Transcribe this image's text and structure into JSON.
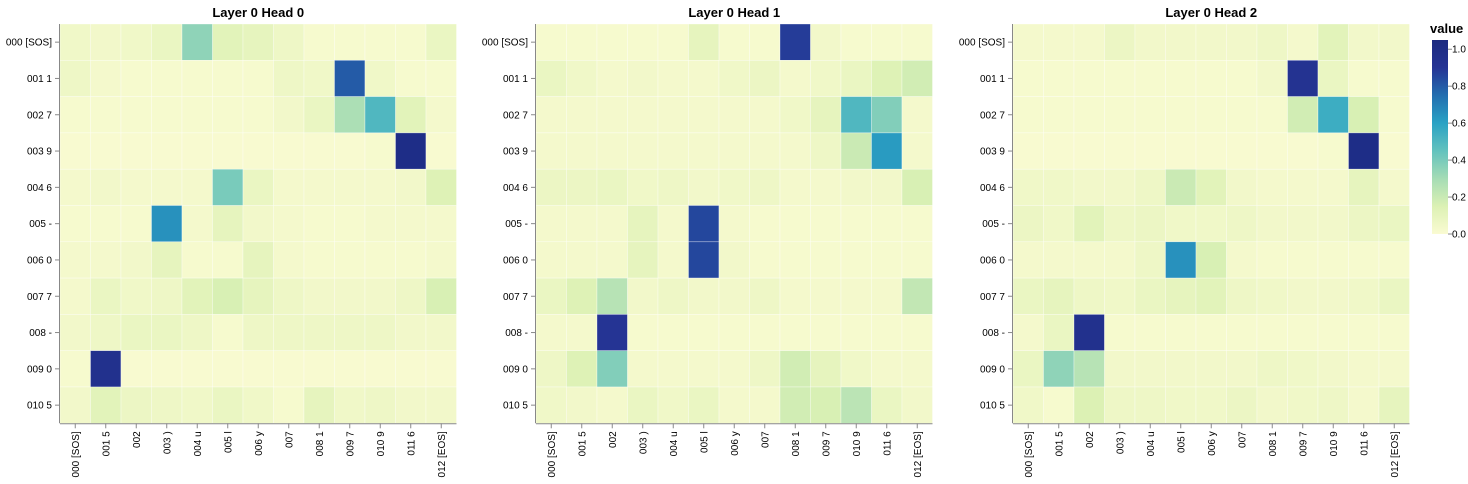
{
  "chart_data": [
    {
      "type": "heatmap",
      "title": "Layer 0 Head 0",
      "x_labels": [
        "000 [SOS]",
        "001 5",
        "002",
        "003 )",
        "004 u",
        "005 l",
        "006 y",
        "007",
        "008 1",
        "009 7",
        "010 9",
        "011 6",
        "012 [EOS]"
      ],
      "y_labels": [
        "000 [SOS]",
        "001 1",
        "002 7",
        "003 9",
        "004 6",
        "005 -",
        "006 0",
        "007 7",
        "008 -",
        "009 0",
        "010 5"
      ],
      "values": [
        [
          0.05,
          0.04,
          0.05,
          0.08,
          0.35,
          0.12,
          0.1,
          0.06,
          0.02,
          0.02,
          0.02,
          0.02,
          0.08
        ],
        [
          0.06,
          0.03,
          0.02,
          0.02,
          0.02,
          0.02,
          0.02,
          0.06,
          0.05,
          0.8,
          0.05,
          0.02,
          0.02
        ],
        [
          0.02,
          0.02,
          0.02,
          0.02,
          0.02,
          0.02,
          0.02,
          0.04,
          0.08,
          0.28,
          0.5,
          0.12,
          0.03
        ],
        [
          0.01,
          0.01,
          0.01,
          0.01,
          0.01,
          0.01,
          0.01,
          0.01,
          0.01,
          0.01,
          0.02,
          1.0,
          0.01
        ],
        [
          0.03,
          0.04,
          0.03,
          0.03,
          0.03,
          0.4,
          0.08,
          0.03,
          0.03,
          0.03,
          0.03,
          0.04,
          0.14
        ],
        [
          0.02,
          0.02,
          0.02,
          0.65,
          0.03,
          0.1,
          0.04,
          0.03,
          0.02,
          0.02,
          0.03,
          0.03,
          0.03
        ],
        [
          0.03,
          0.03,
          0.04,
          0.1,
          0.02,
          0.02,
          0.1,
          0.03,
          0.02,
          0.02,
          0.02,
          0.02,
          0.03
        ],
        [
          0.03,
          0.08,
          0.05,
          0.06,
          0.12,
          0.16,
          0.1,
          0.06,
          0.04,
          0.04,
          0.04,
          0.06,
          0.16
        ],
        [
          0.04,
          0.06,
          0.08,
          0.08,
          0.06,
          0.02,
          0.06,
          0.06,
          0.06,
          0.06,
          0.06,
          0.04,
          0.04
        ],
        [
          0.02,
          0.95,
          0.01,
          0.01,
          0.01,
          0.01,
          0.01,
          0.01,
          0.01,
          0.01,
          0.01,
          0.01,
          0.01
        ],
        [
          0.04,
          0.12,
          0.07,
          0.06,
          0.05,
          0.08,
          0.05,
          0.02,
          0.1,
          0.05,
          0.06,
          0.04,
          0.04
        ]
      ]
    },
    {
      "type": "heatmap",
      "title": "Layer 0 Head 1",
      "x_labels": [
        "000 [SOS]",
        "001 5",
        "002",
        "003 )",
        "004 u",
        "005 l",
        "006 y",
        "007",
        "008 1",
        "009 7",
        "010 9",
        "011 6",
        "012 [EOS]"
      ],
      "y_labels": [
        "000 [SOS]",
        "001 1",
        "002 7",
        "003 9",
        "004 6",
        "005 -",
        "006 0",
        "007 7",
        "008 -",
        "009 0",
        "010 5"
      ],
      "values": [
        [
          0.02,
          0.02,
          0.02,
          0.02,
          0.02,
          0.1,
          0.02,
          0.02,
          0.88,
          0.04,
          0.02,
          0.02,
          0.02
        ],
        [
          0.08,
          0.05,
          0.03,
          0.04,
          0.03,
          0.03,
          0.05,
          0.07,
          0.03,
          0.05,
          0.08,
          0.14,
          0.18
        ],
        [
          0.03,
          0.03,
          0.03,
          0.03,
          0.03,
          0.03,
          0.03,
          0.03,
          0.05,
          0.1,
          0.5,
          0.38,
          0.03
        ],
        [
          0.03,
          0.03,
          0.03,
          0.03,
          0.03,
          0.03,
          0.03,
          0.03,
          0.03,
          0.06,
          0.2,
          0.62,
          0.03
        ],
        [
          0.07,
          0.07,
          0.08,
          0.05,
          0.06,
          0.04,
          0.05,
          0.06,
          0.03,
          0.03,
          0.04,
          0.04,
          0.16
        ],
        [
          0.03,
          0.03,
          0.03,
          0.1,
          0.03,
          0.85,
          0.03,
          0.02,
          0.02,
          0.02,
          0.02,
          0.02,
          0.02
        ],
        [
          0.03,
          0.03,
          0.03,
          0.1,
          0.03,
          0.85,
          0.04,
          0.02,
          0.02,
          0.02,
          0.02,
          0.02,
          0.02
        ],
        [
          0.08,
          0.14,
          0.25,
          0.04,
          0.06,
          0.04,
          0.04,
          0.06,
          0.03,
          0.03,
          0.03,
          0.03,
          0.22
        ],
        [
          0.03,
          0.03,
          0.9,
          0.02,
          0.02,
          0.02,
          0.02,
          0.02,
          0.02,
          0.02,
          0.02,
          0.02,
          0.02
        ],
        [
          0.06,
          0.14,
          0.38,
          0.03,
          0.03,
          0.03,
          0.03,
          0.06,
          0.18,
          0.1,
          0.05,
          0.03,
          0.03
        ],
        [
          0.05,
          0.04,
          0.03,
          0.08,
          0.05,
          0.08,
          0.03,
          0.03,
          0.18,
          0.16,
          0.24,
          0.08,
          0.04
        ]
      ]
    },
    {
      "type": "heatmap",
      "title": "Layer 0 Head 2",
      "x_labels": [
        "000 [SOS]",
        "001 5",
        "002",
        "003 )",
        "004 u",
        "005 l",
        "006 y",
        "007",
        "008 1",
        "009 7",
        "010 9",
        "011 6",
        "012 [EOS]"
      ],
      "y_labels": [
        "000 [SOS]",
        "001 1",
        "002 7",
        "003 9",
        "004 6",
        "005 -",
        "006 0",
        "007 7",
        "008 -",
        "009 0",
        "010 5"
      ],
      "values": [
        [
          0.03,
          0.03,
          0.03,
          0.07,
          0.04,
          0.04,
          0.04,
          0.04,
          0.06,
          0.03,
          0.12,
          0.04,
          0.04
        ],
        [
          0.02,
          0.02,
          0.02,
          0.02,
          0.02,
          0.02,
          0.02,
          0.02,
          0.04,
          0.92,
          0.08,
          0.02,
          0.02
        ],
        [
          0.02,
          0.02,
          0.02,
          0.02,
          0.02,
          0.02,
          0.02,
          0.02,
          0.02,
          0.18,
          0.55,
          0.16,
          0.02
        ],
        [
          0.01,
          0.01,
          0.01,
          0.01,
          0.01,
          0.01,
          0.01,
          0.01,
          0.01,
          0.01,
          0.02,
          1.0,
          0.01
        ],
        [
          0.05,
          0.05,
          0.04,
          0.04,
          0.06,
          0.2,
          0.12,
          0.04,
          0.03,
          0.03,
          0.03,
          0.1,
          0.03
        ],
        [
          0.07,
          0.05,
          0.12,
          0.06,
          0.07,
          0.05,
          0.05,
          0.06,
          0.04,
          0.04,
          0.04,
          0.07,
          0.08
        ],
        [
          0.03,
          0.03,
          0.03,
          0.03,
          0.06,
          0.65,
          0.16,
          0.03,
          0.02,
          0.02,
          0.02,
          0.02,
          0.02
        ],
        [
          0.08,
          0.1,
          0.06,
          0.05,
          0.08,
          0.1,
          0.12,
          0.06,
          0.05,
          0.04,
          0.04,
          0.05,
          0.08
        ],
        [
          0.03,
          0.08,
          0.95,
          0.02,
          0.02,
          0.02,
          0.02,
          0.02,
          0.02,
          0.02,
          0.02,
          0.02,
          0.02
        ],
        [
          0.08,
          0.35,
          0.25,
          0.04,
          0.04,
          0.04,
          0.04,
          0.04,
          0.06,
          0.05,
          0.04,
          0.03,
          0.03
        ],
        [
          0.05,
          0.02,
          0.15,
          0.06,
          0.06,
          0.05,
          0.05,
          0.07,
          0.04,
          0.05,
          0.06,
          0.03,
          0.1
        ]
      ]
    }
  ],
  "legend": {
    "title": "value",
    "ticks": [
      "1.0",
      "0.8",
      "0.6",
      "0.4",
      "0.2",
      "0.0"
    ],
    "colors": [
      "#fafbd2",
      "#dcf1b4",
      "#a5dcb5",
      "#63c2be",
      "#2aa2c4",
      "#236eb0",
      "#253494",
      "#1b2a80"
    ]
  }
}
